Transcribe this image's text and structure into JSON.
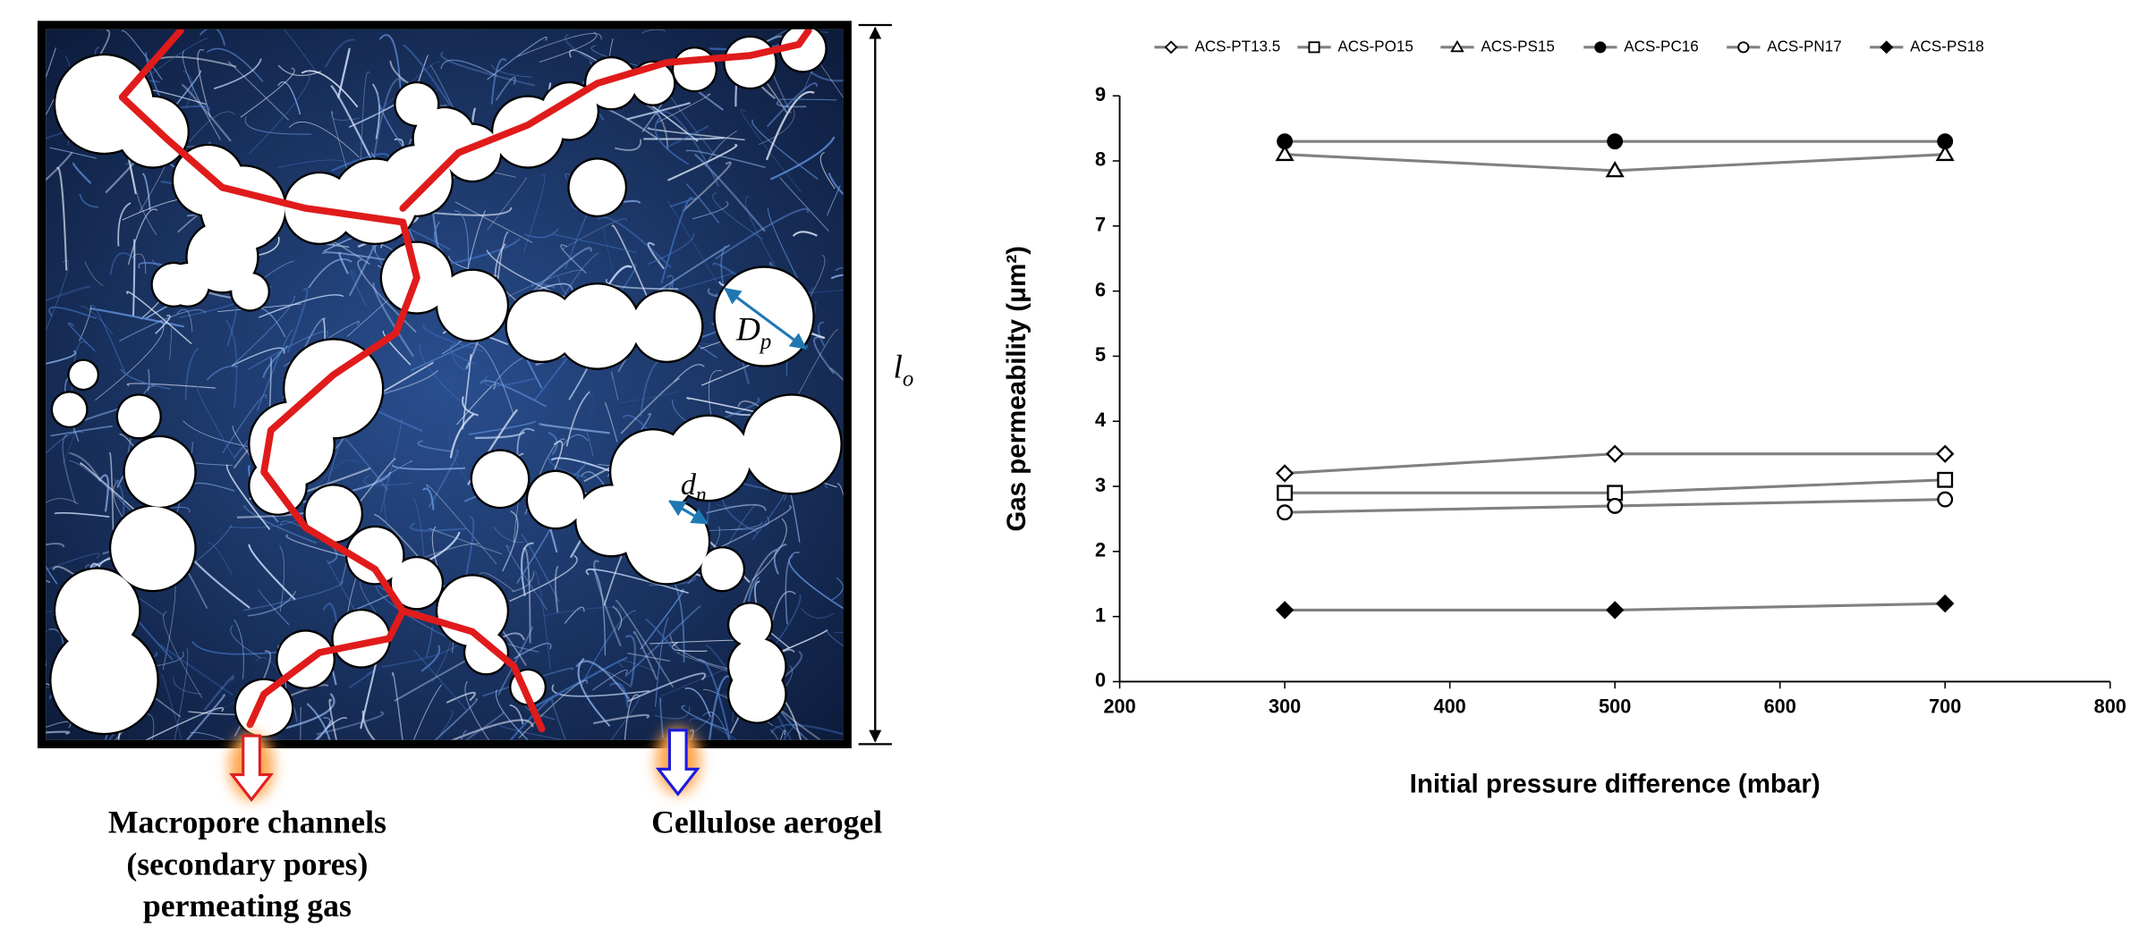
{
  "diagram": {
    "captions": {
      "channels": [
        "Macropore channels",
        "(secondary pores)",
        "permeating gas"
      ],
      "aerogel": "Cellulose aerogel"
    },
    "symbols": {
      "pore_diameter": {
        "main": "D",
        "sub": "p"
      },
      "neck_diameter": {
        "main": "d",
        "sub": "n"
      },
      "length": {
        "main": "l",
        "sub": "o"
      }
    }
  },
  "chart_data": {
    "type": "line",
    "xlabel": "Initial pressure difference (mbar)",
    "ylabel": "Gas permeability (μm²)",
    "x": [
      300,
      500,
      700
    ],
    "xlim": [
      200,
      800
    ],
    "xticks": [
      200,
      300,
      400,
      500,
      600,
      700,
      800
    ],
    "ylim": [
      0,
      9
    ],
    "yticks": [
      0,
      1,
      2,
      3,
      4,
      5,
      6,
      7,
      8,
      9
    ],
    "line_color": "#808080",
    "legend": "top",
    "series": [
      {
        "name": "ACS-PT13.5",
        "marker": "diamond",
        "filled": false,
        "color": "#000000",
        "values": [
          3.2,
          3.5,
          3.5
        ]
      },
      {
        "name": "ACS-PO15",
        "marker": "square",
        "filled": false,
        "color": "#000000",
        "values": [
          2.9,
          2.9,
          3.1
        ]
      },
      {
        "name": "ACS-PS15",
        "marker": "triangle",
        "filled": false,
        "color": "#000000",
        "values": [
          8.1,
          7.85,
          8.1
        ]
      },
      {
        "name": "ACS-PC16",
        "marker": "circle",
        "filled": true,
        "color": "#000000",
        "values": [
          8.3,
          8.3,
          8.3
        ]
      },
      {
        "name": "ACS-PN17",
        "marker": "circle",
        "filled": false,
        "color": "#000000",
        "values": [
          2.6,
          2.7,
          2.8
        ]
      },
      {
        "name": "ACS-PS18",
        "marker": "diamond",
        "filled": true,
        "color": "#000000",
        "values": [
          1.1,
          1.1,
          1.2
        ]
      }
    ]
  }
}
